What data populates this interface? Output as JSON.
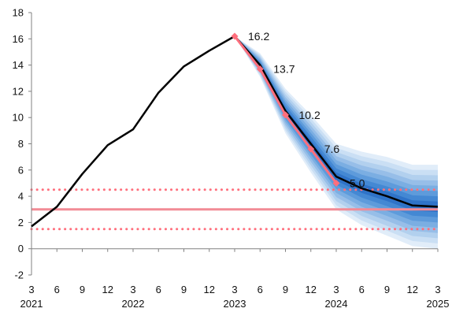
{
  "chart_data": {
    "type": "line",
    "title": "",
    "xlabel": "",
    "ylabel": "",
    "ylim": [
      -2,
      18
    ],
    "yticks": [
      -2,
      0,
      2,
      4,
      6,
      8,
      10,
      12,
      14,
      16,
      18
    ],
    "grid": false,
    "legend": "none",
    "x_months": [
      "2021-03",
      "2021-06",
      "2021-09",
      "2021-12",
      "2022-03",
      "2022-06",
      "2022-09",
      "2022-12",
      "2023-03",
      "2023-06",
      "2023-09",
      "2023-12",
      "2024-03",
      "2024-06",
      "2024-09",
      "2024-12",
      "2025-03"
    ],
    "x_tick_labels": [
      "3",
      "6",
      "9",
      "12",
      "3",
      "6",
      "9",
      "12",
      "3",
      "6",
      "9",
      "12",
      "3",
      "6",
      "9",
      "12",
      "3"
    ],
    "year_labels": [
      {
        "text": "2021",
        "at": "2021-03"
      },
      {
        "text": "2022",
        "at": "2022-03"
      },
      {
        "text": "2023",
        "at": "2023-03"
      },
      {
        "text": "2024",
        "at": "2024-03"
      },
      {
        "text": "2025",
        "at": "2025-03"
      }
    ],
    "series": [
      {
        "role": "actual-and-central",
        "color": "#000000",
        "x": [
          "2021-03",
          "2021-06",
          "2021-09",
          "2021-12",
          "2022-03",
          "2022-06",
          "2022-09",
          "2022-12",
          "2023-03",
          "2023-06",
          "2023-09",
          "2023-12",
          "2024-03",
          "2024-06",
          "2024-09",
          "2024-12",
          "2025-03"
        ],
        "values": [
          1.7,
          3.2,
          5.7,
          7.9,
          9.1,
          11.9,
          13.9,
          15.1,
          16.2,
          14.0,
          10.5,
          8.0,
          5.5,
          4.6,
          4.0,
          3.3,
          3.2
        ]
      },
      {
        "role": "previous-forecast",
        "color": "#ff6f7d",
        "markers": true,
        "x": [
          "2023-03",
          "2023-06",
          "2023-09",
          "2023-12",
          "2024-03"
        ],
        "values": [
          16.2,
          13.7,
          10.2,
          7.6,
          5.0
        ],
        "labels": [
          "16.2",
          "13.7",
          "10.2",
          "7.6",
          "5.0"
        ]
      }
    ],
    "fan": {
      "x": [
        "2023-03",
        "2023-06",
        "2023-09",
        "2023-12",
        "2024-03",
        "2024-06",
        "2024-09",
        "2024-12",
        "2025-03"
      ],
      "center": [
        16.2,
        14.0,
        10.5,
        8.0,
        5.5,
        4.6,
        4.0,
        3.3,
        3.2
      ],
      "halfwidth": [
        0.0,
        0.9,
        1.7,
        2.2,
        2.5,
        2.8,
        3.0,
        3.1,
        3.2
      ],
      "colors": [
        "#e1edf9",
        "#cadff4",
        "#b2d0ee",
        "#97bee8",
        "#7baee2",
        "#5e9bdb",
        "#4488d3",
        "#2f73c8"
      ]
    },
    "reference_lines": [
      {
        "value": 3.0,
        "style": "solid",
        "color": "#f28b96"
      },
      {
        "value": 4.5,
        "style": "dotted",
        "color": "#ff6f7d"
      },
      {
        "value": 1.5,
        "style": "dotted",
        "color": "#ff6f7d"
      }
    ]
  }
}
